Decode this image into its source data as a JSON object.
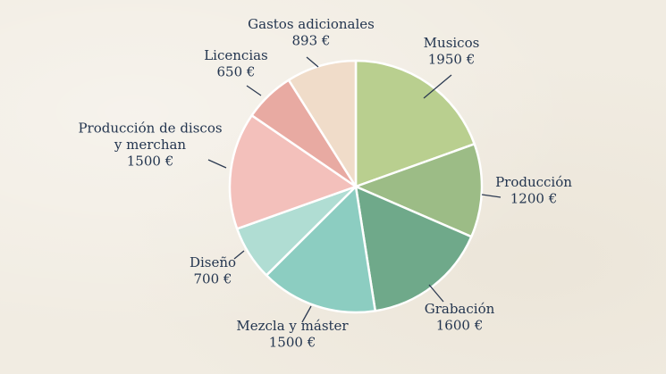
{
  "chart_data": {
    "type": "pie",
    "title": "",
    "unit": "€",
    "slices": [
      {
        "lines": [
          "Musicos"
        ],
        "value_label": "1950 €",
        "value": 1950,
        "color": "#b9cf8f"
      },
      {
        "lines": [
          "Producción"
        ],
        "value_label": "1200 €",
        "value": 1200,
        "color": "#9cbc86"
      },
      {
        "lines": [
          "Grabación"
        ],
        "value_label": "1600 €",
        "value": 1600,
        "color": "#6fa98a"
      },
      {
        "lines": [
          "Mezcla y máster"
        ],
        "value_label": "1500 €",
        "value": 1500,
        "color": "#8ccdc1"
      },
      {
        "lines": [
          "Diseño"
        ],
        "value_label": "700 €",
        "value": 700,
        "color": "#b0ddd3"
      },
      {
        "lines": [
          "Producción de discos",
          "y merchan"
        ],
        "value_label": "1500 €",
        "value": 1500,
        "color": "#f3c0bb"
      },
      {
        "lines": [
          "Licencias"
        ],
        "value_label": "650 €",
        "value": 650,
        "color": "#e8aaa2"
      },
      {
        "lines": [
          "Gastos adicionales"
        ],
        "value_label": "893 €",
        "value": 893,
        "color": "#f0dcc9"
      }
    ]
  }
}
